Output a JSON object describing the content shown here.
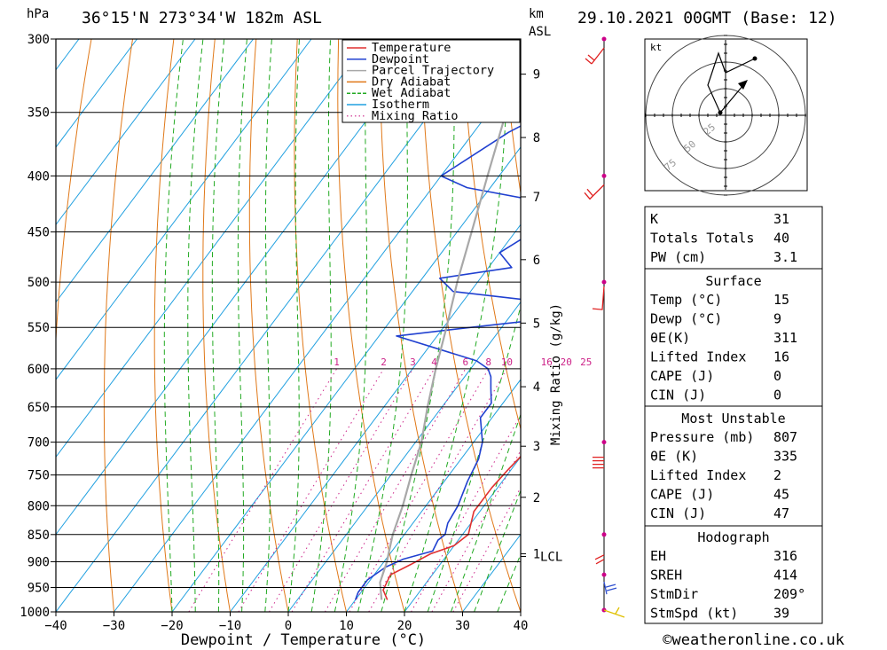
{
  "header": {
    "unit_left": "hPa",
    "location": "36°15'N 273°34'W 182m ASL",
    "unit_km": "km",
    "unit_asl": "ASL",
    "datetime": "29.10.2021 00GMT (Base: 12)"
  },
  "chart_data": {
    "type": "line",
    "title": "36°15'N 273°34'W 182m ASL",
    "xlabel": "Dewpoint / Temperature (°C)",
    "ylabel": "hPa",
    "y2label": "Mixing Ratio (g/kg)",
    "xlim": [
      -40,
      40
    ],
    "ylim": [
      1000,
      300
    ],
    "yscale": "log",
    "grid": true,
    "x_ticks": [
      "−40",
      "−30",
      "−20",
      "−10",
      "0",
      "10",
      "20",
      "30",
      "40"
    ],
    "pressure_levels": [
      300,
      350,
      400,
      450,
      500,
      550,
      600,
      650,
      700,
      750,
      800,
      850,
      900,
      950,
      1000
    ],
    "km_levels": [
      {
        "label": "9",
        "p": 323
      },
      {
        "label": "8",
        "p": 369
      },
      {
        "label": "7",
        "p": 418
      },
      {
        "label": "6",
        "p": 477
      },
      {
        "label": "5",
        "p": 545
      },
      {
        "label": "4",
        "p": 623
      },
      {
        "label": "3",
        "p": 706
      },
      {
        "label": "2",
        "p": 786
      },
      {
        "label": "1",
        "p": 885
      }
    ],
    "lcl_label": "LCL",
    "lcl_p": 890,
    "mixing_ratio_labels": [
      "1",
      "2",
      "3",
      "4",
      "6",
      "8",
      "10",
      "16",
      "20",
      "25"
    ],
    "legend": [
      "Temperature",
      "Dewpoint",
      "Parcel Trajectory",
      "Dry Adiabat",
      "Wet Adiabat",
      "Isotherm",
      "Mixing Ratio"
    ],
    "legend_position": "top-right",
    "colors": {
      "temperature": "#e03030",
      "dewpoint": "#2040d0",
      "parcel": "#a8a8a8",
      "dry_adiabat": "#e07818",
      "wet_adiabat": "#22aa22",
      "isotherm": "#20a0e0",
      "mixing_ratio": "#cc2288",
      "wind_marker": "#cc0088"
    },
    "series": [
      {
        "name": "Temperature",
        "points": [
          [
            15.5,
            975
          ],
          [
            13.5,
            955
          ],
          [
            12.8,
            925
          ],
          [
            15,
            905
          ],
          [
            17,
            885
          ],
          [
            20,
            870
          ],
          [
            21,
            850
          ],
          [
            19,
            810
          ],
          [
            19,
            770
          ],
          [
            19.5,
            740
          ],
          [
            20,
            720
          ],
          [
            19.5,
            700
          ],
          [
            16,
            650
          ],
          [
            14,
            610
          ],
          [
            14,
            585
          ],
          [
            15,
            560
          ],
          [
            14.5,
            545
          ],
          [
            15.3,
            530
          ],
          [
            15.5,
            500
          ],
          [
            12.5,
            480
          ],
          [
            10.5,
            460
          ],
          [
            9.5,
            440
          ],
          [
            10,
            420
          ],
          [
            11,
            400
          ],
          [
            10,
            385
          ],
          [
            9,
            370
          ],
          [
            7.5,
            350
          ],
          [
            6.5,
            330
          ],
          [
            6,
            300
          ]
        ]
      },
      {
        "name": "Dewpoint",
        "points": [
          [
            10,
            975
          ],
          [
            9.5,
            960
          ],
          [
            9.5,
            935
          ],
          [
            11,
            910
          ],
          [
            13,
            895
          ],
          [
            17,
            880
          ],
          [
            16.5,
            860
          ],
          [
            17,
            850
          ],
          [
            16,
            830
          ],
          [
            15.5,
            800
          ],
          [
            14,
            760
          ],
          [
            13,
            725
          ],
          [
            11.5,
            700
          ],
          [
            8,
            665
          ],
          [
            8,
            645
          ],
          [
            6,
            625
          ],
          [
            4.5,
            610
          ],
          [
            3,
            600
          ],
          [
            0,
            590
          ],
          [
            -17,
            560
          ],
          [
            -3,
            548
          ],
          [
            7,
            540
          ],
          [
            5,
            528
          ],
          [
            2,
            520
          ],
          [
            -13,
            510
          ],
          [
            -17,
            496
          ],
          [
            -6,
            485
          ],
          [
            -10,
            470
          ],
          [
            -8,
            457
          ],
          [
            -8,
            442
          ],
          [
            -12,
            420
          ],
          [
            -24,
            410
          ],
          [
            -30,
            400
          ],
          [
            -24,
            365
          ],
          [
            -20,
            350
          ],
          [
            -27,
            300
          ]
        ]
      },
      {
        "name": "Parcel Trajectory",
        "points": [
          [
            14.5,
            975
          ],
          [
            12,
            940
          ],
          [
            10.5,
            900
          ],
          [
            9.5,
            880
          ],
          [
            8,
            850
          ],
          [
            6,
            800
          ],
          [
            3.5,
            750
          ],
          [
            1,
            700
          ],
          [
            -2.5,
            650
          ],
          [
            -6,
            600
          ],
          [
            -9.5,
            550
          ],
          [
            -13.5,
            500
          ],
          [
            -17.5,
            450
          ],
          [
            -22,
            400
          ],
          [
            -27,
            350
          ],
          [
            -32,
            300
          ]
        ]
      }
    ],
    "wind_barb_levels": [
      300,
      400,
      500,
      700,
      850,
      925,
      1000
    ]
  },
  "hodograph": {
    "unit": "kt",
    "ring_labels": [
      "25",
      "50",
      "75"
    ]
  },
  "indices_table": {
    "rows": [
      {
        "label": "K",
        "value": "31"
      },
      {
        "label": "Totals Totals",
        "value": "40"
      },
      {
        "label": "PW (cm)",
        "value": "3.1"
      }
    ]
  },
  "surface_table": {
    "title": "Surface",
    "rows": [
      {
        "label": "Temp (°C)",
        "value": "15"
      },
      {
        "label": "Dewp (°C)",
        "value": "9"
      },
      {
        "label": "θE(K)",
        "value": "311"
      },
      {
        "label": "Lifted Index",
        "value": "16"
      },
      {
        "label": "CAPE (J)",
        "value": "0"
      },
      {
        "label": "CIN (J)",
        "value": "0"
      }
    ]
  },
  "unstable_table": {
    "title": "Most Unstable",
    "rows": [
      {
        "label": "Pressure (mb)",
        "value": "807"
      },
      {
        "label": "θE (K)",
        "value": "335"
      },
      {
        "label": "Lifted Index",
        "value": "2"
      },
      {
        "label": "CAPE (J)",
        "value": "45"
      },
      {
        "label": "CIN (J)",
        "value": "47"
      }
    ]
  },
  "hodograph_table": {
    "title": "Hodograph",
    "rows": [
      {
        "label": "EH",
        "value": "316"
      },
      {
        "label": "SREH",
        "value": "414"
      },
      {
        "label": "StmDir",
        "value": "209°"
      },
      {
        "label": "StmSpd (kt)",
        "value": "39"
      }
    ]
  },
  "footer": {
    "copyright": "©weatheronline.co.uk"
  }
}
